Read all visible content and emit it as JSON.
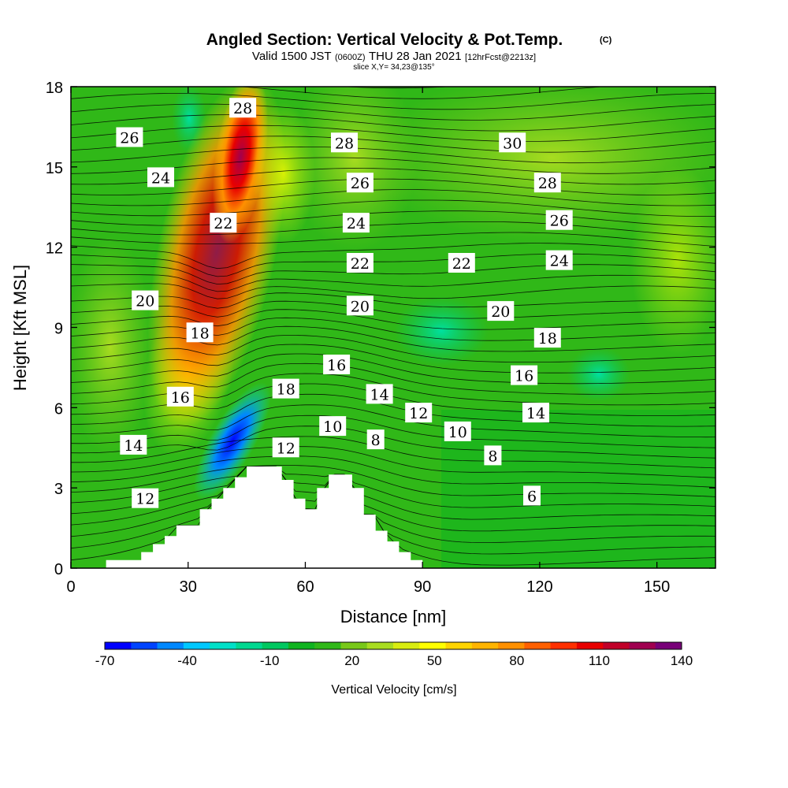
{
  "header": {
    "title": "Angled Section: Vertical Velocity & Pot.Temp.",
    "title_mark": "(C)",
    "valid_prefix": "Valid 1500 JST",
    "valid_z": "(0600Z)",
    "valid_date": "THU 28 Jan 2021",
    "forecast": "[12hrFcst@2213z]",
    "slice": "slice X,Y= 34,23@135°"
  },
  "colorbar": {
    "title": "Vertical Velocity [cm/s]",
    "tick_labels": [
      "-70",
      "-40",
      "-10",
      "20",
      "50",
      "80",
      "110",
      "140"
    ],
    "colors": [
      "#0000ff",
      "#0044ff",
      "#0088ff",
      "#00c8ff",
      "#00e0c8",
      "#00d890",
      "#00c860",
      "#10b420",
      "#30b818",
      "#78c818",
      "#a8dc20",
      "#d8ec10",
      "#ffff00",
      "#ffd400",
      "#ffb400",
      "#ff9000",
      "#ff6000",
      "#ff3000",
      "#e80000",
      "#c00028",
      "#a00050",
      "#780078"
    ]
  },
  "chart_data": {
    "type": "heatmap",
    "title": "Angled Section: Vertical Velocity & Pot.Temp.",
    "xlabel": "Distance [nm]",
    "ylabel": "Height [Kft MSL]",
    "xlim": [
      0,
      165
    ],
    "ylim": [
      0,
      18
    ],
    "x_ticks": [
      "0",
      "30",
      "60",
      "90",
      "120",
      "150"
    ],
    "y_ticks": [
      "0",
      "3",
      "6",
      "9",
      "12",
      "15",
      "18"
    ],
    "fill_variable": "Vertical Velocity [cm/s]",
    "fill_range": [
      -70,
      140
    ],
    "fill_interval": 10,
    "contour_variable": "Pot.Temp. (C)",
    "contour_labels": [
      {
        "text": "28",
        "x": 44,
        "y": 17.2
      },
      {
        "text": "26",
        "x": 15,
        "y": 16.1
      },
      {
        "text": "24",
        "x": 23,
        "y": 14.6
      },
      {
        "text": "22",
        "x": 39,
        "y": 12.9
      },
      {
        "text": "20",
        "x": 19,
        "y": 10.0
      },
      {
        "text": "18",
        "x": 33,
        "y": 8.8
      },
      {
        "text": "16",
        "x": 28,
        "y": 6.4
      },
      {
        "text": "14",
        "x": 16,
        "y": 4.6
      },
      {
        "text": "12",
        "x": 19,
        "y": 2.6
      },
      {
        "text": "28",
        "x": 70,
        "y": 15.9
      },
      {
        "text": "26",
        "x": 74,
        "y": 14.4
      },
      {
        "text": "24",
        "x": 73,
        "y": 12.9
      },
      {
        "text": "22",
        "x": 74,
        "y": 11.4
      },
      {
        "text": "20",
        "x": 74,
        "y": 9.8
      },
      {
        "text": "18",
        "x": 55,
        "y": 6.7
      },
      {
        "text": "16",
        "x": 68,
        "y": 7.6
      },
      {
        "text": "14",
        "x": 79,
        "y": 6.5
      },
      {
        "text": "12",
        "x": 55,
        "y": 4.5
      },
      {
        "text": "10",
        "x": 67,
        "y": 5.3
      },
      {
        "text": "8",
        "x": 78,
        "y": 4.8
      },
      {
        "text": "12",
        "x": 89,
        "y": 5.8
      },
      {
        "text": "10",
        "x": 99,
        "y": 5.1
      },
      {
        "text": "22",
        "x": 100,
        "y": 11.4
      },
      {
        "text": "20",
        "x": 110,
        "y": 9.6
      },
      {
        "text": "18",
        "x": 122,
        "y": 8.6
      },
      {
        "text": "16",
        "x": 116,
        "y": 7.2
      },
      {
        "text": "14",
        "x": 119,
        "y": 5.8
      },
      {
        "text": "8",
        "x": 108,
        "y": 4.2
      },
      {
        "text": "6",
        "x": 118,
        "y": 2.7
      },
      {
        "text": "30",
        "x": 113,
        "y": 15.9
      },
      {
        "text": "28",
        "x": 122,
        "y": 14.4
      },
      {
        "text": "26",
        "x": 125,
        "y": 13.0
      },
      {
        "text": "24",
        "x": 125,
        "y": 11.5
      }
    ],
    "terrain_profile": [
      [
        0,
        0
      ],
      [
        9,
        0
      ],
      [
        9,
        0.3
      ],
      [
        18,
        0.3
      ],
      [
        18,
        0.6
      ],
      [
        21,
        0.6
      ],
      [
        21,
        0.9
      ],
      [
        24,
        0.9
      ],
      [
        24,
        1.2
      ],
      [
        27,
        1.2
      ],
      [
        27,
        1.6
      ],
      [
        33,
        1.6
      ],
      [
        33,
        2.2
      ],
      [
        36,
        2.2
      ],
      [
        36,
        2.6
      ],
      [
        39,
        2.6
      ],
      [
        39,
        3.0
      ],
      [
        42,
        3.0
      ],
      [
        42,
        3.4
      ],
      [
        45,
        3.4
      ],
      [
        45,
        3.8
      ],
      [
        54,
        3.8
      ],
      [
        54,
        3.3
      ],
      [
        57,
        3.3
      ],
      [
        57,
        2.6
      ],
      [
        60,
        2.6
      ],
      [
        60,
        2.2
      ],
      [
        63,
        2.2
      ],
      [
        63,
        3.0
      ],
      [
        66,
        3.0
      ],
      [
        66,
        3.5
      ],
      [
        72,
        3.5
      ],
      [
        72,
        3.0
      ],
      [
        75,
        3.0
      ],
      [
        75,
        2.0
      ],
      [
        78,
        2.0
      ],
      [
        78,
        1.4
      ],
      [
        81,
        1.4
      ],
      [
        81,
        1.0
      ],
      [
        84,
        1.0
      ],
      [
        84,
        0.6
      ],
      [
        87,
        0.6
      ],
      [
        87,
        0.3
      ],
      [
        90,
        0.3
      ],
      [
        90,
        0
      ]
    ]
  }
}
